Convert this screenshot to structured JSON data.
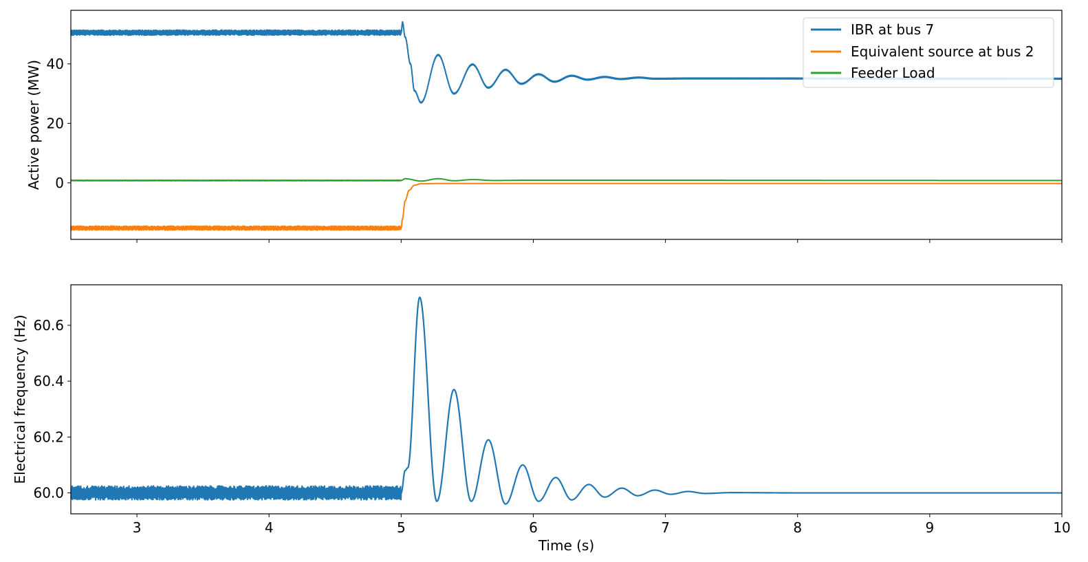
{
  "chart_data": [
    {
      "type": "line",
      "ylabel": "Active power (MW)",
      "xlim": [
        2.5,
        10
      ],
      "ylim": [
        -19,
        58
      ],
      "xticks": [
        3,
        4,
        5,
        6,
        7,
        8,
        9,
        10
      ],
      "yticks": [
        0,
        20,
        40
      ],
      "ytick_labels": [
        "0",
        "20",
        "40"
      ],
      "legend_position": "top-right",
      "series": [
        {
          "name": "IBR at bus 7",
          "color": "#1f77b4",
          "x": [
            2.5,
            5.0,
            5.01,
            5.03,
            5.07,
            5.1,
            5.15,
            5.28,
            5.4,
            5.54,
            5.66,
            5.79,
            5.91,
            6.04,
            6.16,
            6.29,
            6.41,
            6.54,
            6.66,
            6.8,
            6.92,
            7.2,
            10.0
          ],
          "y": [
            50.5,
            50.5,
            54.0,
            49.0,
            40.0,
            31.0,
            27.0,
            43.0,
            30.0,
            39.8,
            32.0,
            38.0,
            33.3,
            36.5,
            34.0,
            36.0,
            34.7,
            35.6,
            34.9,
            35.4,
            35.0,
            35.1,
            35.0
          ],
          "noise_before_5s": 0.9
        },
        {
          "name": "Equivalent source at bus 2",
          "color": "#ff7f0e",
          "x": [
            2.5,
            5.0,
            5.01,
            5.03,
            5.06,
            5.1,
            5.15,
            5.3,
            10.0
          ],
          "y": [
            -15.2,
            -15.2,
            -12.0,
            -6.0,
            -2.5,
            -0.8,
            -0.3,
            -0.2,
            -0.2
          ],
          "noise_before_5s": 0.7
        },
        {
          "name": "Feeder Load",
          "color": "#2ca02c",
          "x": [
            2.5,
            5.0,
            5.03,
            5.15,
            5.28,
            5.4,
            5.54,
            5.7,
            6.0,
            10.0
          ],
          "y": [
            0.8,
            0.8,
            1.4,
            0.6,
            1.4,
            0.7,
            1.1,
            0.8,
            0.9,
            0.8
          ],
          "noise_before_5s": 0.1
        }
      ]
    },
    {
      "type": "line",
      "ylabel": "Electrical frequency (Hz)",
      "xlabel": "Time (s)",
      "xlim": [
        2.5,
        10
      ],
      "ylim": [
        59.925,
        60.745
      ],
      "xticks": [
        3,
        4,
        5,
        6,
        7,
        8,
        9,
        10
      ],
      "xtick_labels": [
        "3",
        "4",
        "5",
        "6",
        "7",
        "8",
        "9",
        "10"
      ],
      "yticks": [
        60.0,
        60.2,
        60.4,
        60.6
      ],
      "ytick_labels": [
        "60.0",
        "60.2",
        "60.4",
        "60.6"
      ],
      "series": [
        {
          "color": "#1f77b4",
          "x": [
            2.5,
            5.0,
            5.03,
            5.05,
            5.14,
            5.27,
            5.4,
            5.53,
            5.66,
            5.79,
            5.92,
            6.04,
            6.17,
            6.29,
            6.42,
            6.54,
            6.67,
            6.79,
            6.92,
            7.04,
            7.17,
            7.3,
            7.5,
            8.0,
            10.0
          ],
          "y": [
            60.0,
            60.0,
            60.08,
            60.09,
            60.7,
            59.97,
            60.37,
            59.97,
            60.19,
            59.96,
            60.1,
            59.97,
            60.055,
            59.975,
            60.03,
            59.985,
            60.017,
            59.99,
            60.01,
            59.995,
            60.005,
            59.998,
            60.001,
            60.0,
            60.0
          ],
          "noise_before_5s": 0.025
        }
      ]
    }
  ]
}
